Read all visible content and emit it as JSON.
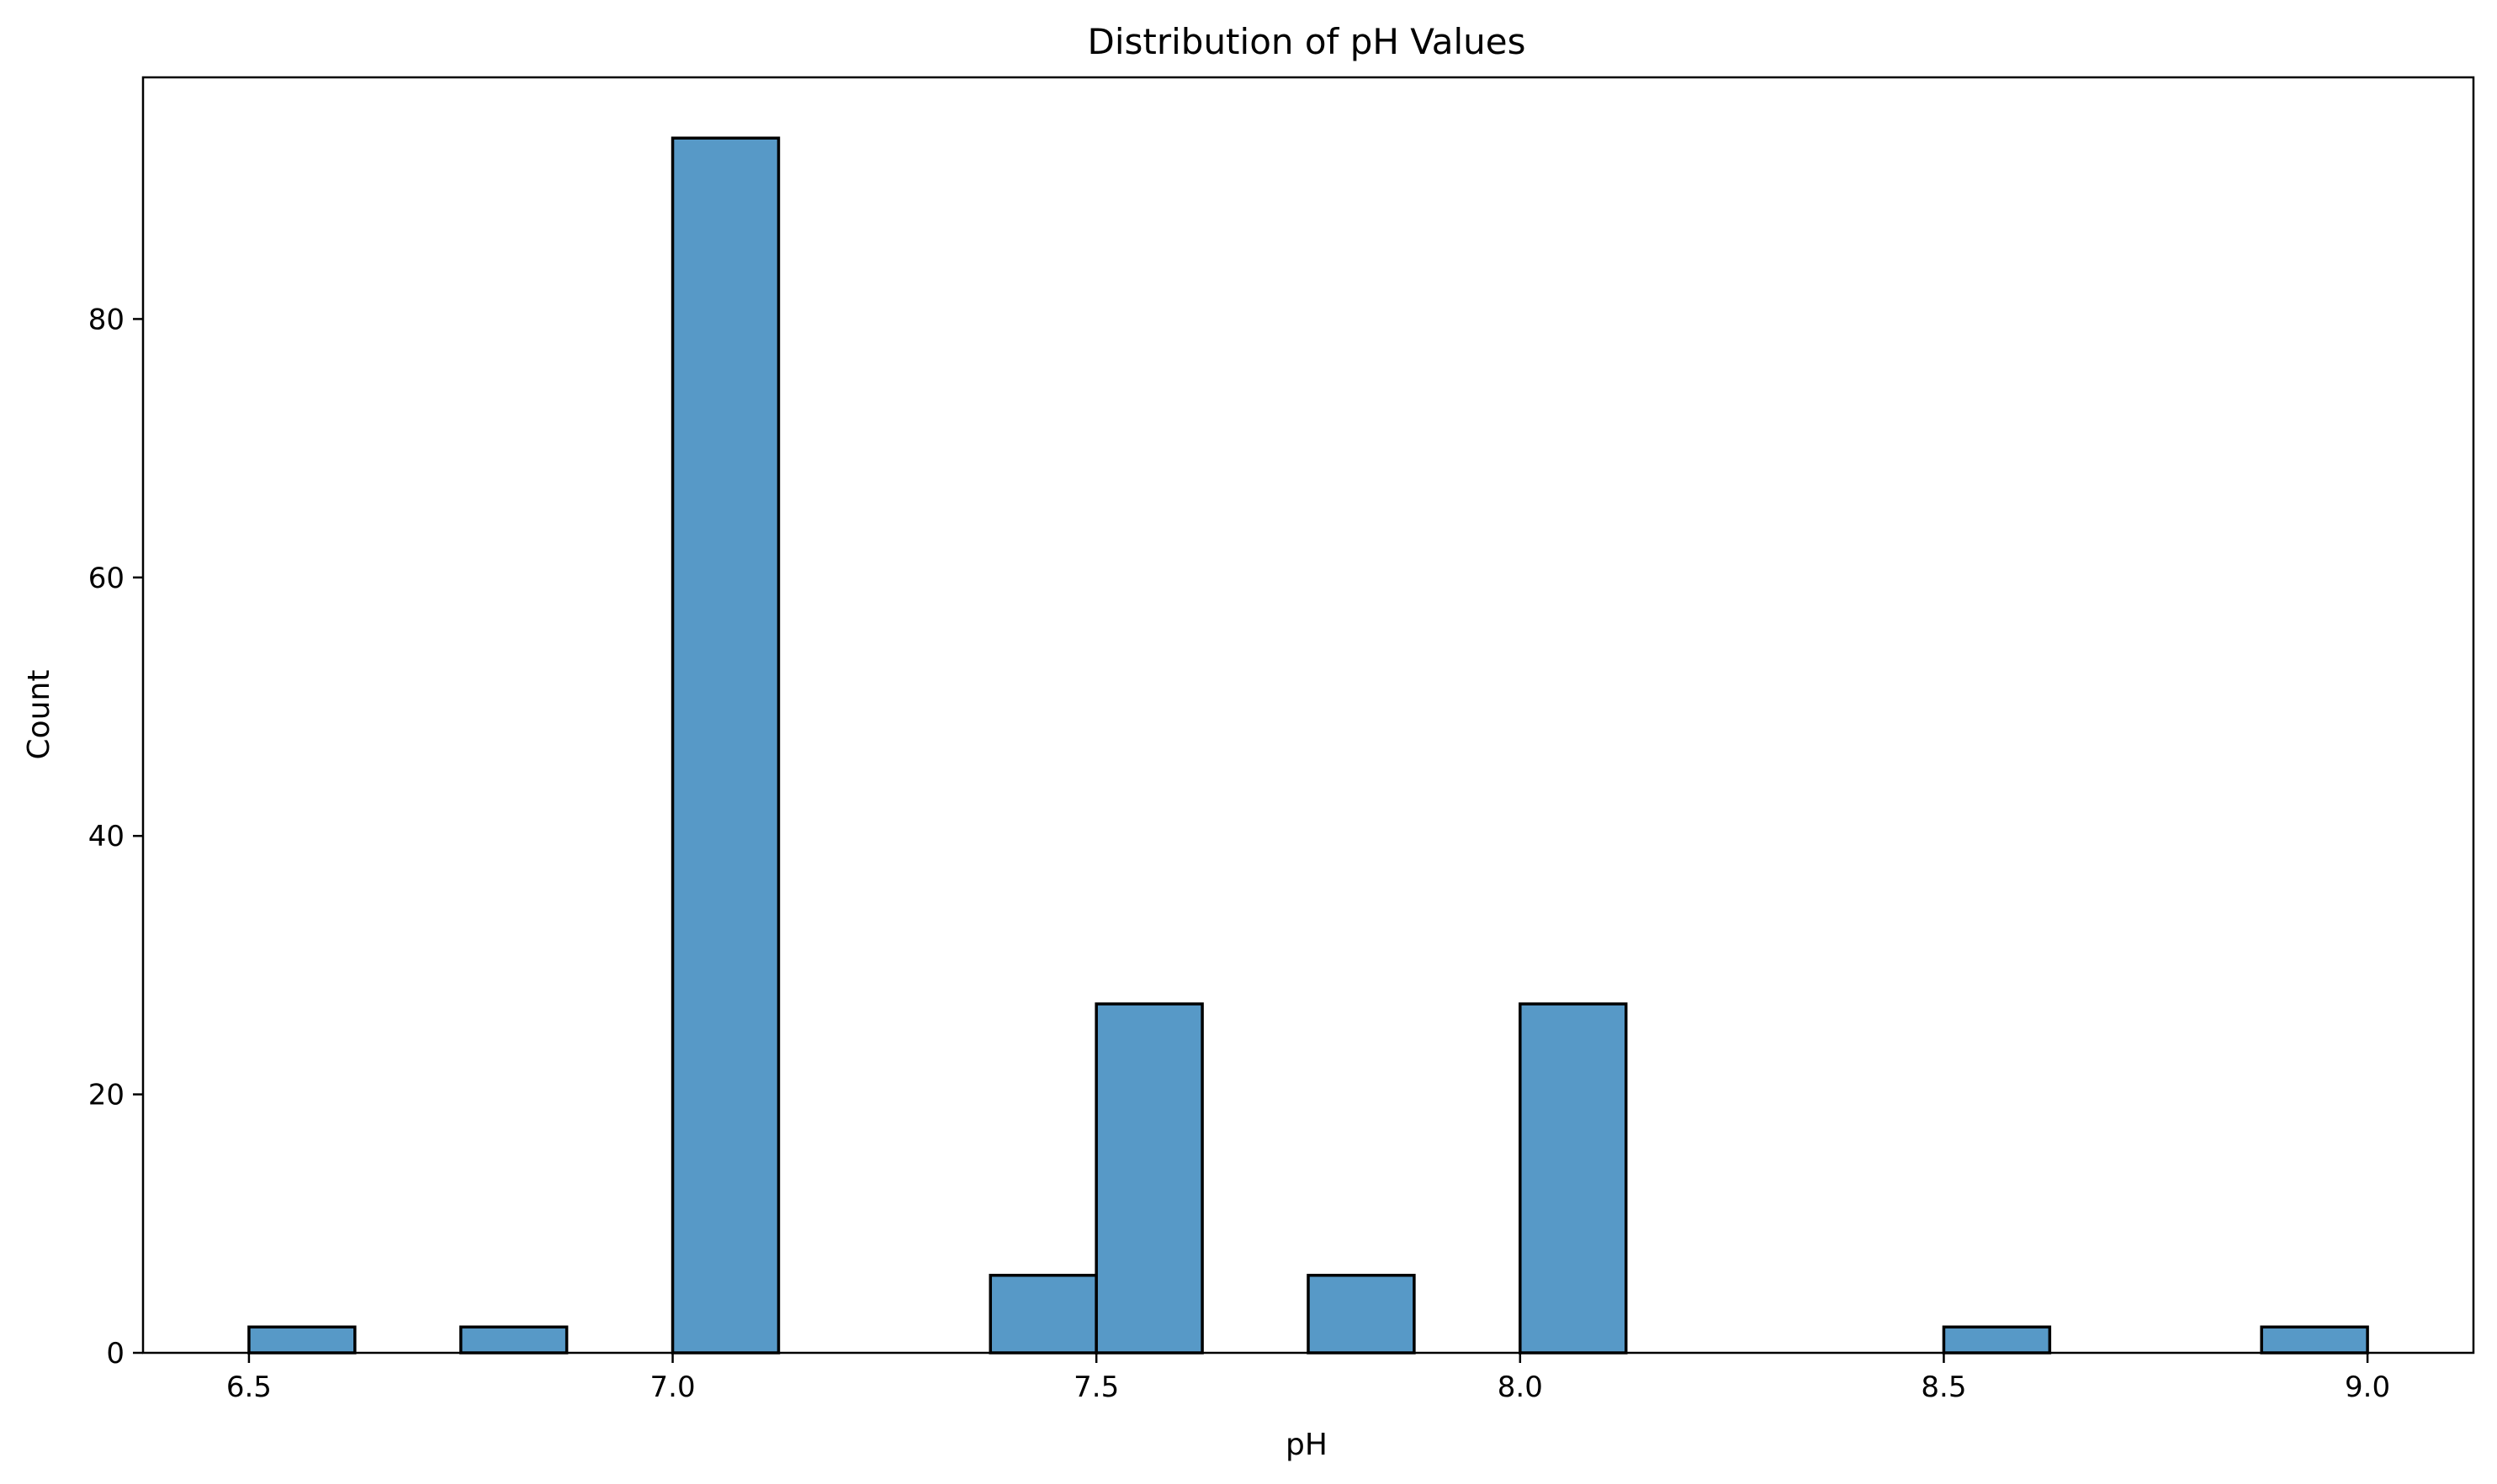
{
  "chart_data": {
    "type": "bar",
    "title": "Distribution of pH Values",
    "xlabel": "pH",
    "ylabel": "Count",
    "xlim": [
      6.375,
      9.125
    ],
    "ylim": [
      0,
      98.7
    ],
    "xticks": [
      "6.5",
      "7.0",
      "7.5",
      "8.0",
      "8.5",
      "9.0"
    ],
    "yticks": [
      "0",
      "20",
      "40",
      "60",
      "80"
    ],
    "bin_edges": [
      6.5,
      6.625,
      6.75,
      6.875,
      7.0,
      7.125,
      7.25,
      7.375,
      7.5,
      7.625,
      7.75,
      7.875,
      8.0,
      8.125,
      8.25,
      8.375,
      8.5,
      8.625,
      8.75,
      8.875,
      9.0
    ],
    "values": [
      2,
      0,
      2,
      0,
      94,
      0,
      0,
      6,
      27,
      0,
      6,
      0,
      27,
      0,
      0,
      0,
      2,
      0,
      0,
      2
    ],
    "color": "#5799c7",
    "grid": false,
    "legend": "none"
  }
}
